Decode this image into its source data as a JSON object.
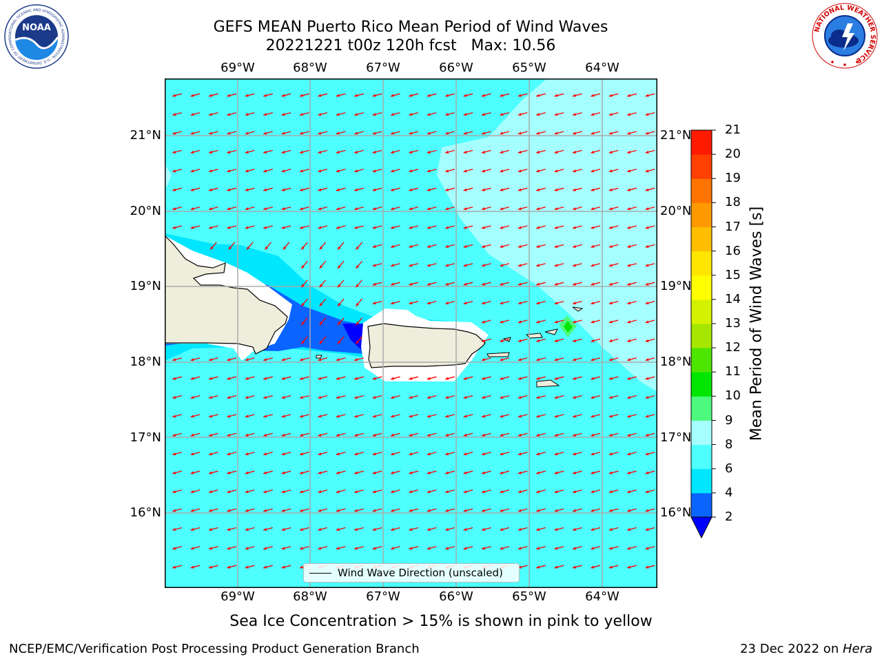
{
  "header": {
    "title_line1": "GEFS MEAN Puerto Rico Mean Period of Wind Waves",
    "title_line2": "20221221 t00z 120h fcst   Max: 10.56"
  },
  "logos": {
    "noaa": "NOAA",
    "noaa_ring": "NATIONAL OCEANIC AND ATMOSPHERIC ADMINISTRATION · U.S. DEPARTMENT OF COMMERCE",
    "nws_ring": "NATIONAL WEATHER SERVICE"
  },
  "map": {
    "lon_labels": [
      "69°W",
      "68°W",
      "67°W",
      "66°W",
      "65°W",
      "64°W"
    ],
    "lat_labels": [
      "21°N",
      "20°N",
      "19°N",
      "18°N",
      "17°N",
      "16°N"
    ],
    "legend_label": "Wind Wave Direction (unscaled)",
    "arrow_color": "#ff0000",
    "land_color": "#efeedd",
    "ocean_base_color": "#4dffff"
  },
  "colorbar": {
    "title": "Mean Period of Wind Waves [s]",
    "ticks": [
      "2",
      "4",
      "6",
      "8",
      "9",
      "10",
      "11",
      "12",
      "13",
      "14",
      "15",
      "16",
      "17",
      "18",
      "19",
      "20",
      "21"
    ],
    "colors": [
      "#0a64ff",
      "#00e6ff",
      "#4dffff",
      "#a6ffff",
      "#4dfa7d",
      "#00e600",
      "#4de600",
      "#a6e600",
      "#d4f200",
      "#ffff00",
      "#ffe600",
      "#ffbf00",
      "#ff9900",
      "#ff7300",
      "#ff4000",
      "#ff1a00"
    ],
    "under_color": "#0000ff"
  },
  "notes": {
    "sea_ice": "Sea Ice Concentration > 15% is shown in pink to yellow"
  },
  "footer": {
    "left": "NCEP/EMC/Verification Post Processing Product Generation Branch",
    "right_prefix": "23 Dec 2022 on ",
    "right_machine": "Hera"
  }
}
